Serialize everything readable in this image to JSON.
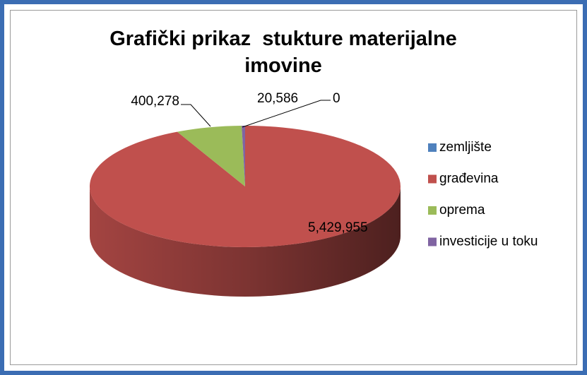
{
  "chart_data": {
    "type": "pie",
    "title": "Grafički prikaz  stukture materijalne imovine",
    "categories": [
      "zemljište",
      "građevina",
      "oprema",
      "investicije u toku"
    ],
    "values": [
      0,
      5429955,
      400278,
      20586
    ],
    "value_labels": [
      "0",
      "5,429,955",
      "400,278",
      "20,586"
    ],
    "colors": [
      "#4f81bd",
      "#c0504d",
      "#9bbb59",
      "#8064a2"
    ],
    "legend": "right"
  }
}
